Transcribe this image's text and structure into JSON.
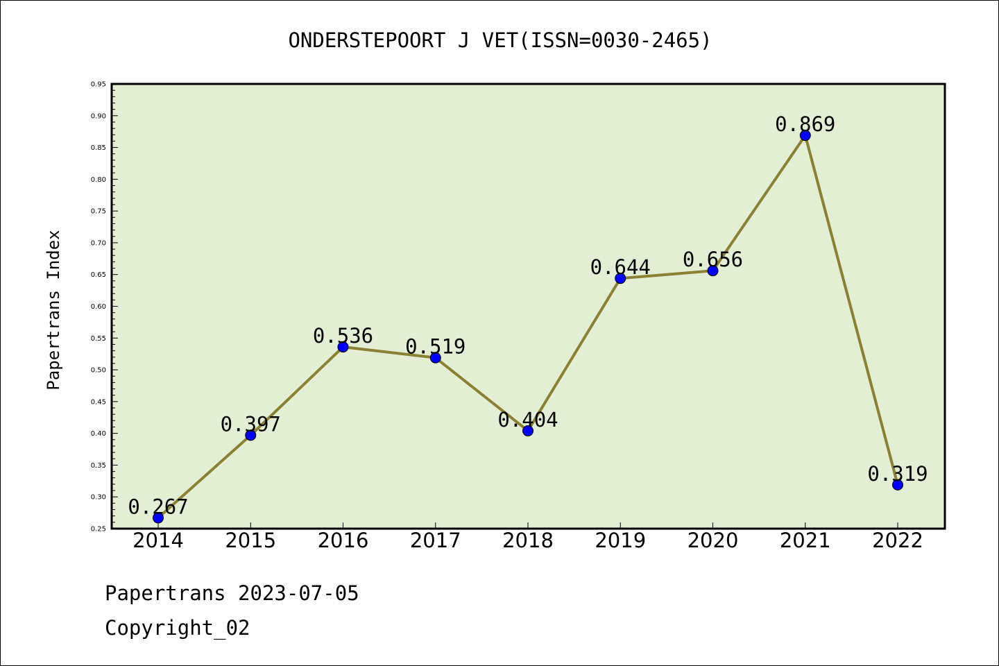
{
  "chart_data": {
    "type": "line",
    "title": "ONDERSTEPOORT J VET(ISSN=0030-2465)",
    "ylabel": "Papertrans Index",
    "xlabel": "",
    "categories": [
      "2014",
      "2015",
      "2016",
      "2017",
      "2018",
      "2019",
      "2020",
      "2021",
      "2022"
    ],
    "series": [
      {
        "values": [
          0.267,
          0.397,
          0.536,
          0.519,
          0.404,
          0.644,
          0.656,
          0.869,
          0.319
        ],
        "labels": [
          "0.267",
          "0.397",
          "0.536",
          "0.519",
          "0.404",
          "0.644",
          "0.656",
          "0.869",
          "0.319"
        ]
      }
    ],
    "ylim": [
      0.25,
      0.95
    ],
    "yticks": [
      "0.25",
      "0.30",
      "0.35",
      "0.40",
      "0.45",
      "0.50",
      "0.55",
      "0.60",
      "0.65",
      "0.70",
      "0.75",
      "0.80",
      "0.85",
      "0.90",
      "0.95"
    ],
    "grid": false,
    "legend": "none"
  },
  "colors": {
    "plot_background": "#e2efd4",
    "line": "#8c8032",
    "marker_fill": "#0000ff",
    "marker_edge": "#000000",
    "axis": "#000000"
  },
  "footer": {
    "line1": "Papertrans 2023-07-05",
    "line2": "Copyright_02"
  }
}
